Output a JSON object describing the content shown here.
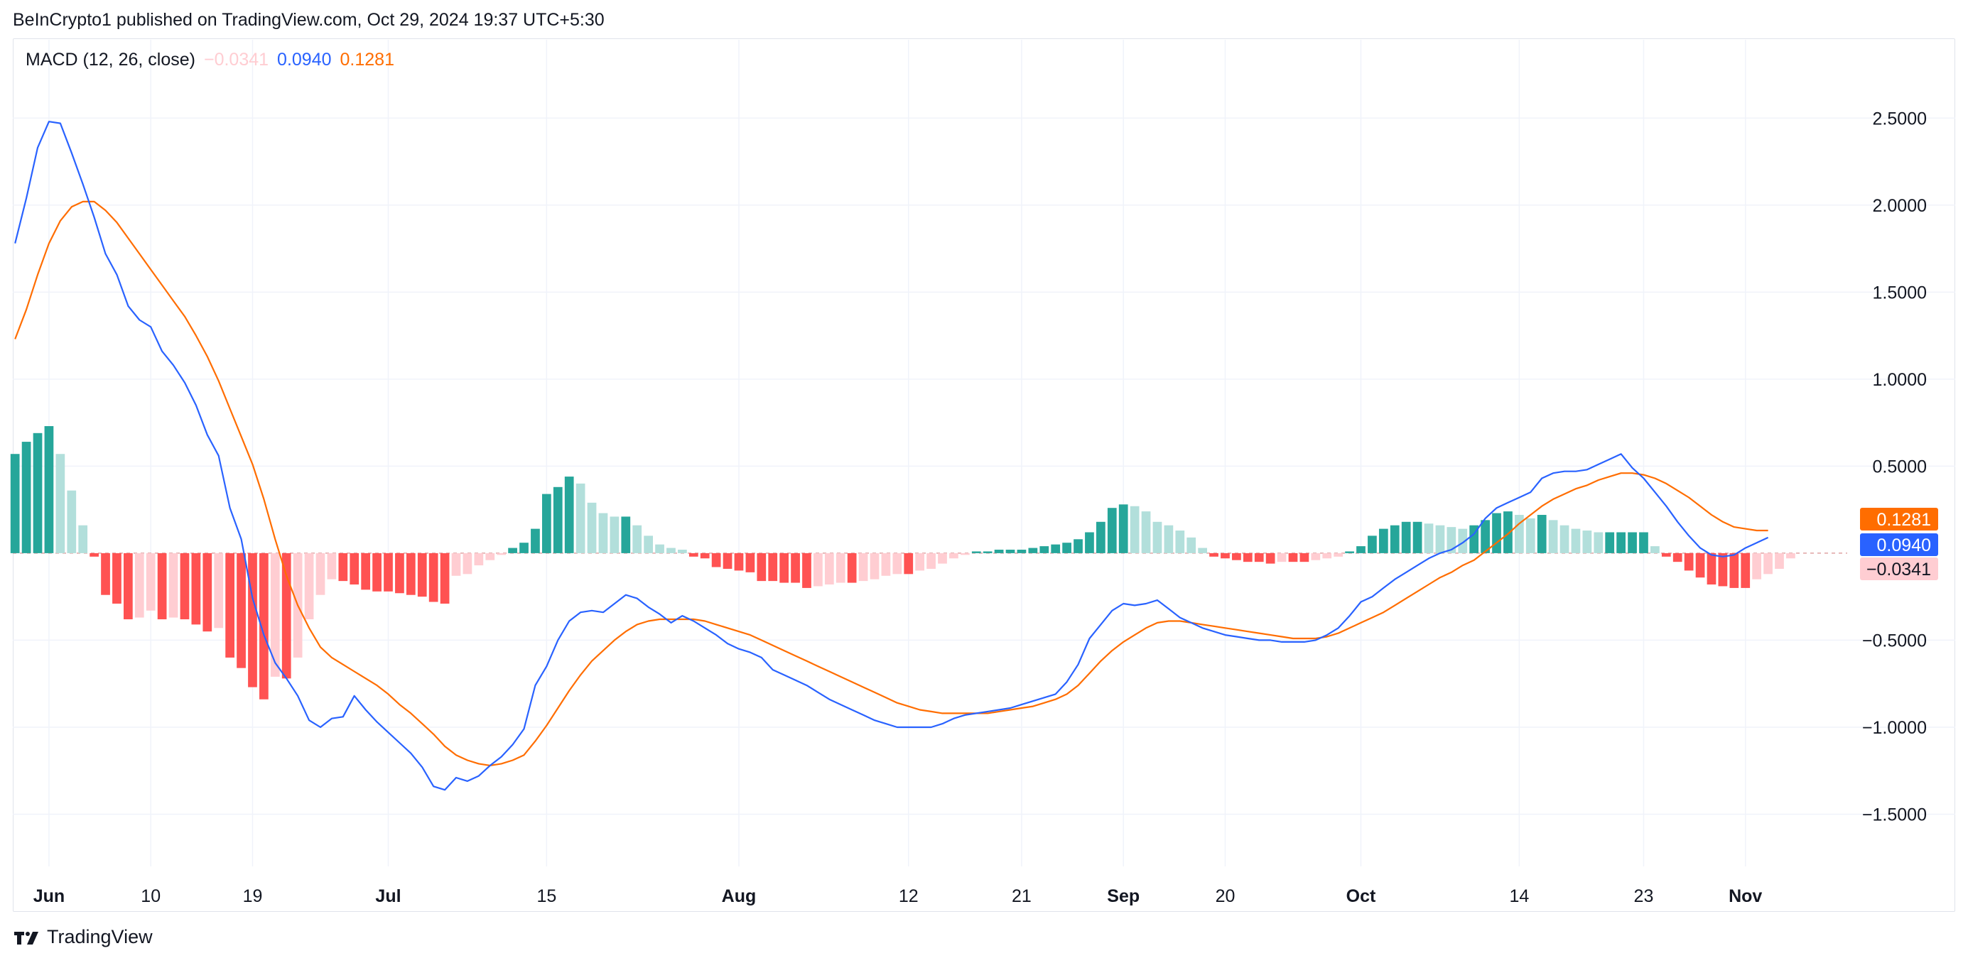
{
  "header": {
    "text": "BeInCrypto1 published on TradingView.com, Oct 29, 2024 19:37 UTC+5:30"
  },
  "legend": {
    "label": "MACD (12, 26, close)",
    "histogram_value": "−0.0341",
    "macd_value": "0.0940",
    "signal_value": "0.1281"
  },
  "footer": {
    "brand": "TradingView"
  },
  "colors": {
    "macd_line": "#2962ff",
    "signal_line": "#ff6d00",
    "hist_pos_strong": "#26a69a",
    "hist_pos_weak": "#b2dfdb",
    "hist_neg_strong": "#ff5252",
    "hist_neg_weak": "#ffcdd2",
    "grid": "#f0f3fa",
    "zero_line": "#e0a3a3"
  },
  "price_tags": [
    {
      "text": "0.1281",
      "value": 0.1281,
      "bg": "#ff6d00",
      "fg": "#ffffff"
    },
    {
      "text": "0.0940",
      "value": 0.094,
      "bg": "#2962ff",
      "fg": "#ffffff"
    },
    {
      "text": "−0.0341",
      "value": -0.0341,
      "bg": "#ffcdd2",
      "fg": "#131722"
    }
  ],
  "chart_data": {
    "type": "line",
    "title": "MACD (12, 26, close)",
    "y_ticks": [
      {
        "value": 2.5,
        "label": "2.5000"
      },
      {
        "value": 2.0,
        "label": "2.0000"
      },
      {
        "value": 1.5,
        "label": "1.5000"
      },
      {
        "value": 1.0,
        "label": "1.0000"
      },
      {
        "value": 0.5,
        "label": "0.5000"
      },
      {
        "value": 0.0,
        "label": ""
      },
      {
        "value": -0.5,
        "label": "−0.5000"
      },
      {
        "value": -1.0,
        "label": "−1.0000"
      },
      {
        "value": -1.5,
        "label": "−1.5000"
      }
    ],
    "ylim": [
      -1.8,
      2.95
    ],
    "x_ticks": [
      {
        "label": "Jun",
        "bar": 3,
        "bold": true
      },
      {
        "label": "10",
        "bar": 12,
        "bold": false
      },
      {
        "label": "19",
        "bar": 21,
        "bold": false
      },
      {
        "label": "Jul",
        "bar": 33,
        "bold": true
      },
      {
        "label": "15",
        "bar": 47,
        "bold": false
      },
      {
        "label": "Aug",
        "bar": 64,
        "bold": true
      },
      {
        "label": "12",
        "bar": 79,
        "bold": false
      },
      {
        "label": "21",
        "bar": 89,
        "bold": false
      },
      {
        "label": "Sep",
        "bar": 98,
        "bold": true
      },
      {
        "label": "20",
        "bar": 107,
        "bold": false
      },
      {
        "label": "Oct",
        "bar": 119,
        "bold": true
      },
      {
        "label": "14",
        "bar": 133,
        "bold": false
      },
      {
        "label": "23",
        "bar": 144,
        "bold": false
      },
      {
        "label": "Nov",
        "bar": 153,
        "bold": true
      }
    ],
    "xlim": [
      -0.2,
      162
    ],
    "series": [
      {
        "name": "MACD",
        "color": "#2962ff",
        "values": [
          1.78,
          2.04,
          2.33,
          2.48,
          2.47,
          2.3,
          2.12,
          1.93,
          1.72,
          1.6,
          1.42,
          1.34,
          1.3,
          1.16,
          1.08,
          0.98,
          0.85,
          0.68,
          0.56,
          0.26,
          0.08,
          -0.26,
          -0.47,
          -0.63,
          -0.72,
          -0.82,
          -0.96,
          -1.0,
          -0.95,
          -0.94,
          -0.82,
          -0.9,
          -0.97,
          -1.03,
          -1.09,
          -1.15,
          -1.23,
          -1.34,
          -1.36,
          -1.29,
          -1.31,
          -1.28,
          -1.22,
          -1.17,
          -1.1,
          -1.01,
          -0.76,
          -0.65,
          -0.5,
          -0.39,
          -0.34,
          -0.33,
          -0.34,
          -0.29,
          -0.24,
          -0.26,
          -0.31,
          -0.35,
          -0.4,
          -0.36,
          -0.39,
          -0.43,
          -0.47,
          -0.52,
          -0.55,
          -0.57,
          -0.6,
          -0.67,
          -0.7,
          -0.73,
          -0.76,
          -0.8,
          -0.84,
          -0.87,
          -0.9,
          -0.93,
          -0.96,
          -0.98,
          -1.0,
          -1.0,
          -1.0,
          -1.0,
          -0.98,
          -0.95,
          -0.93,
          -0.92,
          -0.91,
          -0.9,
          -0.89,
          -0.87,
          -0.85,
          -0.83,
          -0.81,
          -0.74,
          -0.64,
          -0.49,
          -0.41,
          -0.33,
          -0.29,
          -0.3,
          -0.29,
          -0.27,
          -0.32,
          -0.37,
          -0.4,
          -0.43,
          -0.45,
          -0.47,
          -0.48,
          -0.49,
          -0.5,
          -0.5,
          -0.51,
          -0.51,
          -0.51,
          -0.5,
          -0.47,
          -0.43,
          -0.36,
          -0.28,
          -0.25,
          -0.2,
          -0.15,
          -0.11,
          -0.07,
          -0.03,
          0.0,
          0.02,
          0.06,
          0.11,
          0.2,
          0.26,
          0.29,
          0.32,
          0.35,
          0.43,
          0.46,
          0.47,
          0.47,
          0.48,
          0.51,
          0.54,
          0.57,
          0.49,
          0.43,
          0.35,
          0.27,
          0.18,
          0.1,
          0.03,
          -0.01,
          -0.02,
          -0.01,
          0.03,
          0.06,
          0.09
        ]
      },
      {
        "name": "Signal",
        "color": "#ff6d00",
        "values": [
          1.23,
          1.4,
          1.6,
          1.78,
          1.91,
          1.99,
          2.02,
          2.02,
          1.97,
          1.9,
          1.81,
          1.72,
          1.63,
          1.54,
          1.45,
          1.36,
          1.25,
          1.13,
          0.99,
          0.83,
          0.67,
          0.51,
          0.31,
          0.08,
          -0.13,
          -0.3,
          -0.43,
          -0.54,
          -0.6,
          -0.64,
          -0.68,
          -0.72,
          -0.76,
          -0.81,
          -0.87,
          -0.92,
          -0.98,
          -1.04,
          -1.11,
          -1.16,
          -1.19,
          -1.21,
          -1.22,
          -1.21,
          -1.19,
          -1.16,
          -1.08,
          -0.99,
          -0.89,
          -0.79,
          -0.7,
          -0.62,
          -0.56,
          -0.5,
          -0.45,
          -0.41,
          -0.39,
          -0.38,
          -0.38,
          -0.38,
          -0.38,
          -0.39,
          -0.41,
          -0.43,
          -0.45,
          -0.47,
          -0.5,
          -0.53,
          -0.56,
          -0.59,
          -0.62,
          -0.65,
          -0.68,
          -0.71,
          -0.74,
          -0.77,
          -0.8,
          -0.83,
          -0.86,
          -0.88,
          -0.9,
          -0.91,
          -0.92,
          -0.92,
          -0.92,
          -0.92,
          -0.92,
          -0.91,
          -0.9,
          -0.89,
          -0.88,
          -0.86,
          -0.84,
          -0.81,
          -0.76,
          -0.69,
          -0.62,
          -0.56,
          -0.51,
          -0.47,
          -0.43,
          -0.4,
          -0.39,
          -0.39,
          -0.4,
          -0.41,
          -0.42,
          -0.43,
          -0.44,
          -0.45,
          -0.46,
          -0.47,
          -0.48,
          -0.49,
          -0.49,
          -0.49,
          -0.48,
          -0.46,
          -0.43,
          -0.4,
          -0.37,
          -0.34,
          -0.3,
          -0.26,
          -0.22,
          -0.18,
          -0.14,
          -0.11,
          -0.07,
          -0.04,
          0.01,
          0.06,
          0.11,
          0.17,
          0.22,
          0.27,
          0.31,
          0.34,
          0.37,
          0.39,
          0.42,
          0.44,
          0.46,
          0.46,
          0.45,
          0.43,
          0.4,
          0.36,
          0.32,
          0.27,
          0.22,
          0.18,
          0.15,
          0.14,
          0.13,
          0.13
        ]
      }
    ],
    "histogram": {
      "name": "Histogram",
      "values": [
        0.57,
        0.64,
        0.69,
        0.73,
        0.57,
        0.36,
        0.16,
        -0.02,
        -0.24,
        -0.29,
        -0.38,
        -0.37,
        -0.33,
        -0.38,
        -0.37,
        -0.38,
        -0.41,
        -0.45,
        -0.43,
        -0.6,
        -0.66,
        -0.77,
        -0.84,
        -0.71,
        -0.72,
        -0.6,
        -0.38,
        -0.24,
        -0.15,
        -0.16,
        -0.18,
        -0.21,
        -0.22,
        -0.22,
        -0.23,
        -0.24,
        -0.25,
        -0.28,
        -0.29,
        -0.13,
        -0.12,
        -0.07,
        -0.04,
        -0.01,
        0.03,
        0.06,
        0.14,
        0.34,
        0.38,
        0.44,
        0.4,
        0.29,
        0.23,
        0.21,
        0.21,
        0.16,
        0.1,
        0.05,
        0.03,
        0.02,
        -0.02,
        -0.03,
        -0.08,
        -0.09,
        -0.1,
        -0.11,
        -0.16,
        -0.16,
        -0.17,
        -0.17,
        -0.2,
        -0.19,
        -0.18,
        -0.17,
        -0.17,
        -0.16,
        -0.15,
        -0.13,
        -0.12,
        -0.12,
        -0.1,
        -0.09,
        -0.06,
        -0.03,
        -0.01,
        0.01,
        0.01,
        0.02,
        0.02,
        0.02,
        0.03,
        0.04,
        0.05,
        0.06,
        0.08,
        0.12,
        0.18,
        0.26,
        0.28,
        0.27,
        0.24,
        0.18,
        0.16,
        0.13,
        0.09,
        0.03,
        -0.02,
        -0.03,
        -0.04,
        -0.05,
        -0.05,
        -0.06,
        -0.05,
        -0.05,
        -0.05,
        -0.04,
        -0.03,
        -0.02,
        0.01,
        0.04,
        0.1,
        0.14,
        0.16,
        0.18,
        0.18,
        0.17,
        0.16,
        0.15,
        0.14,
        0.16,
        0.19,
        0.23,
        0.24,
        0.22,
        0.2,
        0.22,
        0.19,
        0.16,
        0.14,
        0.13,
        0.12,
        0.12,
        0.12,
        0.12,
        0.12,
        0.04,
        -0.02,
        -0.05,
        -0.1,
        -0.14,
        -0.18,
        -0.19,
        -0.2,
        -0.2,
        -0.15,
        -0.12,
        -0.09,
        -0.03
      ]
    }
  }
}
